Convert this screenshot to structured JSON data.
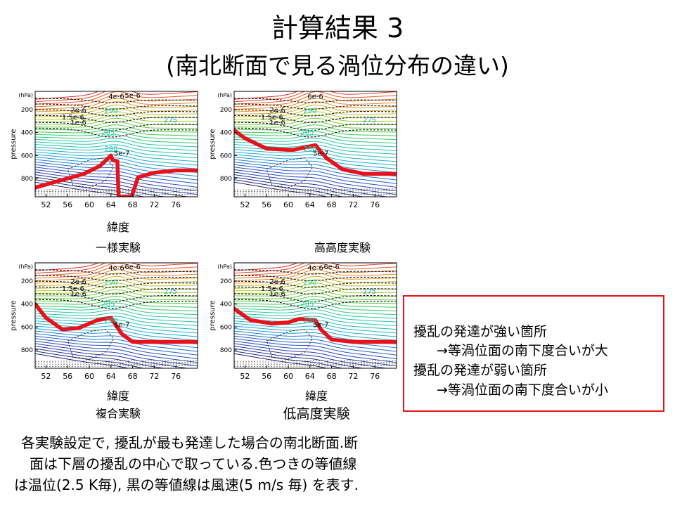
{
  "slide": {
    "title": "計算結果 3",
    "subtitle": "(南北断面で見る渦位分布の違い)"
  },
  "chart_data": [
    {
      "type": "line",
      "name": "一様実験",
      "ylabel": "pressure",
      "y_unit": "(hPa)",
      "xlabel": "緯度",
      "y_ticks": [
        "200",
        "400",
        "600",
        "800"
      ],
      "x_ticks": [
        "52",
        "56",
        "60",
        "64",
        "68",
        "72",
        "76"
      ],
      "contour_labels_black": [
        "2e-6",
        "1.5e-6",
        "1e-6",
        "5e-7",
        "4e-6",
        "5e-6"
      ],
      "contour_labels_color": [
        "290",
        "285",
        "280",
        "275"
      ],
      "pv_front": {
        "x": [
          50,
          53,
          56,
          59,
          62,
          64,
          64.3,
          65.2,
          65.4,
          67.8,
          69,
          72,
          76,
          80
        ],
        "y": [
          880,
          840,
          800,
          760,
          690,
          600,
          640,
          650,
          960,
          960,
          790,
          750,
          730,
          730
        ]
      }
    },
    {
      "type": "line",
      "name": "高高度実験",
      "ylabel": "pressure",
      "y_unit": "(hPa)",
      "xlabel": "",
      "y_ticks": [
        "200",
        "400",
        "600",
        "800"
      ],
      "x_ticks": [
        "52",
        "56",
        "60",
        "64",
        "68",
        "72",
        "76"
      ],
      "contour_labels_black": [
        "2e-6",
        "1.5e-6",
        "1e-6",
        "5e-7",
        "6e-6"
      ],
      "contour_labels_color": [
        "290",
        "285",
        "280",
        "275"
      ],
      "pv_front": {
        "x": [
          50,
          52,
          56,
          60,
          61,
          65,
          67,
          70,
          74,
          78,
          80
        ],
        "y": [
          380,
          450,
          540,
          550,
          550,
          510,
          620,
          720,
          760,
          760,
          760
        ]
      }
    },
    {
      "type": "line",
      "name": "複合実験",
      "ylabel": "pressure",
      "y_unit": "(hPa)",
      "xlabel": "緯度",
      "y_ticks": [
        "200",
        "400",
        "600",
        "800"
      ],
      "x_ticks": [
        "52",
        "56",
        "60",
        "64",
        "68",
        "72",
        "76"
      ],
      "contour_labels_black": [
        "2e-6",
        "1.5e-6",
        "1e-6",
        "5e-7",
        "4e-6",
        "6e-6"
      ],
      "contour_labels_color": [
        "290",
        "285",
        "280",
        "275"
      ],
      "pv_front": {
        "x": [
          50,
          52,
          55,
          58,
          61.5,
          64,
          66,
          68,
          72,
          76,
          80
        ],
        "y": [
          400,
          520,
          620,
          610,
          540,
          520,
          660,
          730,
          730,
          730,
          730
        ]
      }
    },
    {
      "type": "line",
      "name": "低高度実験",
      "ylabel": "pressure",
      "y_unit": "(hPa)",
      "xlabel": "緯度",
      "y_ticks": [
        "200",
        "400",
        "600",
        "800"
      ],
      "x_ticks": [
        "52",
        "56",
        "60",
        "64",
        "68",
        "72",
        "76"
      ],
      "contour_labels_black": [
        "2e-6",
        "1.5e-6",
        "1e-6",
        "5e-7",
        "4e-6",
        "6e-6"
      ],
      "contour_labels_color": [
        "290",
        "285",
        "280",
        "275"
      ],
      "pv_front": {
        "x": [
          50,
          53,
          57,
          60,
          62,
          65,
          66,
          68,
          72,
          76,
          80
        ],
        "y": [
          440,
          540,
          570,
          560,
          530,
          540,
          620,
          710,
          730,
          730,
          730
        ]
      }
    }
  ],
  "notes": {
    "line1": "擾乱の発達が強い箇所",
    "line2": "→等渦位面の南下度合いが大",
    "line3": "擾乱の発達が弱い箇所",
    "line4": "→等渦位面の南下度合いが小"
  },
  "footnote": {
    "line1": "各実験設定で, 擾乱が最も発達した場合の南北断面.断",
    "line2": "面は下層の擾乱の中心で取っている.色つきの等値線",
    "line3": "は温位(2.5 K毎), 黒の等値線は風速(5 m/s 毎) を表す."
  },
  "colors": {
    "pv_front": "#e8121c",
    "box_border": "#e8121c"
  }
}
